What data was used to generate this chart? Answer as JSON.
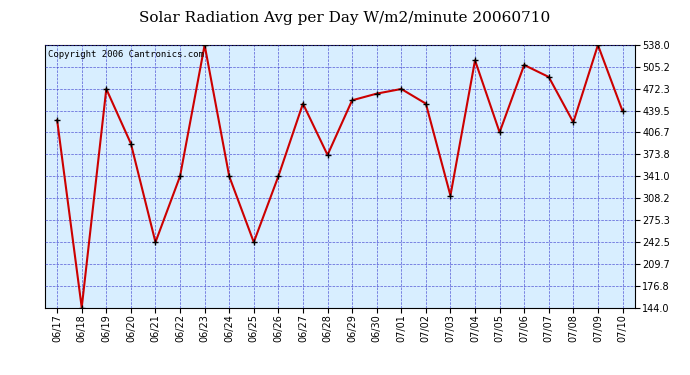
{
  "title": "Solar Radiation Avg per Day W/m2/minute 20060710",
  "copyright_text": "Copyright 2006 Cantronics.com",
  "dates": [
    "06/17",
    "06/18",
    "06/19",
    "06/20",
    "06/21",
    "06/22",
    "06/23",
    "06/24",
    "06/25",
    "06/26",
    "06/27",
    "06/28",
    "06/29",
    "06/30",
    "07/01",
    "07/02",
    "07/03",
    "07/04",
    "07/05",
    "07/06",
    "07/07",
    "07/08",
    "07/09",
    "07/10"
  ],
  "values": [
    425,
    144,
    472,
    390,
    242,
    341,
    538,
    341,
    242,
    341,
    450,
    373,
    455,
    465,
    472,
    450,
    312,
    515,
    407,
    508,
    490,
    422,
    538,
    439
  ],
  "ylim": [
    144.0,
    538.0
  ],
  "yticks": [
    144.0,
    176.8,
    209.7,
    242.5,
    275.3,
    308.2,
    341.0,
    373.8,
    406.7,
    439.5,
    472.3,
    505.2,
    538.0
  ],
  "line_color": "#cc0000",
  "marker_color": "#000000",
  "bg_color": "#d8eeff",
  "fig_bg_color": "#ffffff",
  "grid_color": "#3333cc",
  "title_fontsize": 11,
  "tick_fontsize": 7,
  "copyright_fontsize": 6.5
}
